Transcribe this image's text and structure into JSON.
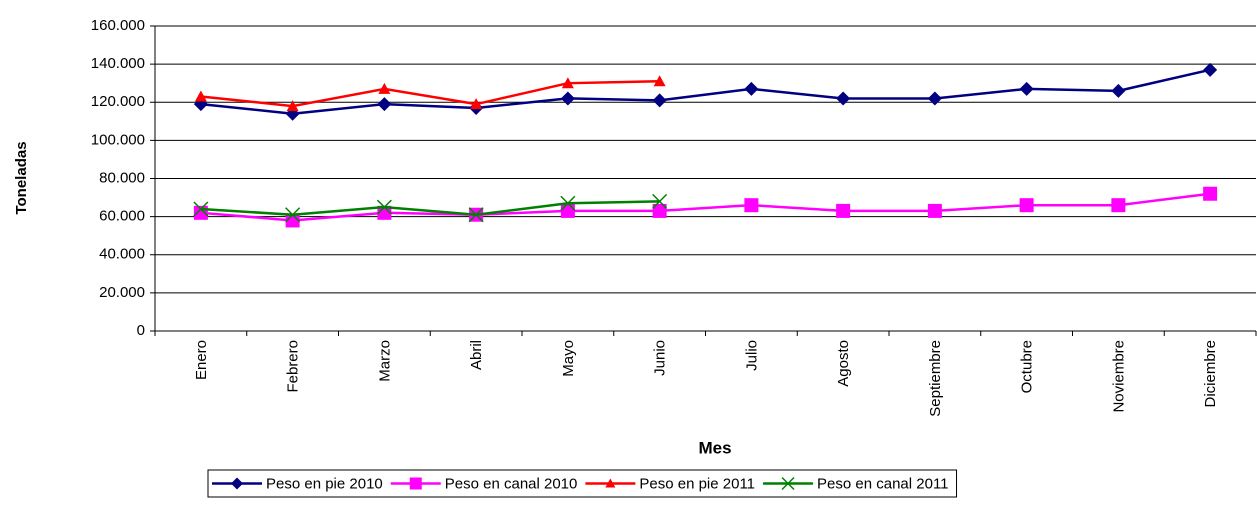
{
  "chart_data": {
    "type": "line",
    "y_label": "Toneladas",
    "x_label": "Mes",
    "categories": [
      "Enero",
      "Febrero",
      "Marzo",
      "Abril",
      "Mayo",
      "Junio",
      "Julio",
      "Agosto",
      "Septiembre",
      "Octubre",
      "Noviembre",
      "Diciembre"
    ],
    "series": [
      {
        "name": "Peso en pie 2010",
        "color": "#000080",
        "marker": "diamond",
        "values": [
          119000,
          114000,
          119000,
          117000,
          122000,
          121000,
          127000,
          122000,
          122000,
          127000,
          126000,
          137000
        ]
      },
      {
        "name": "Peso en canal 2010",
        "color": "#ff00ff",
        "marker": "square",
        "values": [
          62000,
          58000,
          62000,
          61000,
          63000,
          63000,
          66000,
          63000,
          63000,
          66000,
          66000,
          72000
        ]
      },
      {
        "name": "Peso en pie 2011",
        "color": "#ff0000",
        "marker": "triangle",
        "values": [
          123000,
          118000,
          127000,
          119000,
          130000,
          131000,
          null,
          null,
          null,
          null,
          null,
          null
        ]
      },
      {
        "name": "Peso en canal 2011",
        "color": "#008000",
        "marker": "x",
        "values": [
          64000,
          61000,
          65000,
          61000,
          67000,
          68000,
          null,
          null,
          null,
          null,
          null,
          null
        ]
      }
    ],
    "ylim": [
      0,
      160000
    ],
    "yticks": [
      0,
      {
        "value": 20000,
        "label": "20.000"
      },
      {
        "value": 40000,
        "label": "40.000"
      },
      {
        "value": 60000,
        "label": "60.000"
      },
      {
        "value": 80000,
        "label": "80.000"
      },
      {
        "value": 100000,
        "label": "100.000"
      },
      {
        "value": 120000,
        "label": "120.000"
      },
      {
        "value": 140000,
        "label": "140.000"
      },
      {
        "value": 160000,
        "label": "160.000"
      }
    ],
    "grid": true,
    "legend": "bottom"
  }
}
